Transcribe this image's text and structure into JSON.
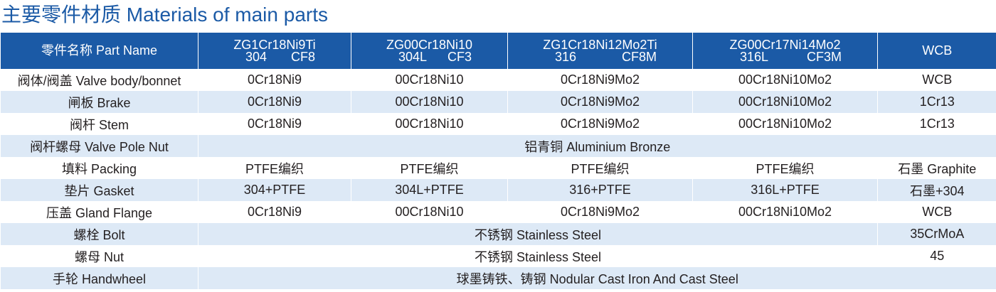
{
  "title": "主要零件材质 Materials of main parts",
  "header": {
    "part_name": "零件名称 Part Name",
    "grades": [
      {
        "grade": "ZG1Cr18Ni9Ti",
        "codes": [
          "304",
          "CF8"
        ]
      },
      {
        "grade": "ZG00Cr18Ni10",
        "codes": [
          "304L",
          "CF3"
        ]
      },
      {
        "grade": "ZG1Cr18Ni12Mo2Ti",
        "codes": [
          "316",
          "CF8M"
        ]
      },
      {
        "grade": "ZG00Cr17Ni14Mo2",
        "codes": [
          "316L",
          "CF3M"
        ]
      }
    ],
    "last": "WCB"
  },
  "rows": [
    {
      "label": "阀体/阀盖 Valve body/bonnet",
      "cells": [
        "0Cr18Ni9",
        "00Cr18Ni10",
        "0Cr18Ni9Mo2",
        "00Cr18Ni10Mo2",
        "WCB"
      ]
    },
    {
      "label": "闸板 Brake",
      "cells": [
        "0Cr18Ni9",
        "00Cr18Ni10",
        "0Cr18Ni9Mo2",
        "00Cr18Ni10Mo2",
        "1Cr13"
      ]
    },
    {
      "label": "阀杆 Stem",
      "cells": [
        "0Cr18Ni9",
        "00Cr18Ni10",
        "0Cr18Ni9Mo2",
        "00Cr18Ni10Mo2",
        "1Cr13"
      ]
    },
    {
      "label": "阀杆螺母 Valve Pole Nut",
      "cells": [
        "铝青铜 Aluminium Bronze"
      ]
    },
    {
      "label": "填料  Packing",
      "cells": [
        "PTFE编织",
        "PTFE编织",
        "PTFE编织",
        "PTFE编织",
        "石墨 Graphite"
      ]
    },
    {
      "label": "垫片 Gasket",
      "cells": [
        "304+PTFE",
        "304L+PTFE",
        "316+PTFE",
        "316L+PTFE",
        "石墨+304"
      ]
    },
    {
      "label": "压盖 Gland Flange",
      "cells": [
        "0Cr18Ni9",
        "00Cr18Ni10",
        "0Cr18Ni9Mo2",
        "00Cr18Ni10Mo2",
        "WCB"
      ]
    },
    {
      "label": "螺栓 Bolt",
      "cells": [
        "不锈钢 Stainless Steel",
        "35CrMoA"
      ]
    },
    {
      "label": "螺母 Nut",
      "cells": [
        "不锈钢 Stainless Steel",
        "45"
      ]
    },
    {
      "label": "手轮 Handwheel",
      "cells": [
        "球墨铸铁、铸钢 Nodular Cast Iron And Cast Steel"
      ]
    }
  ]
}
